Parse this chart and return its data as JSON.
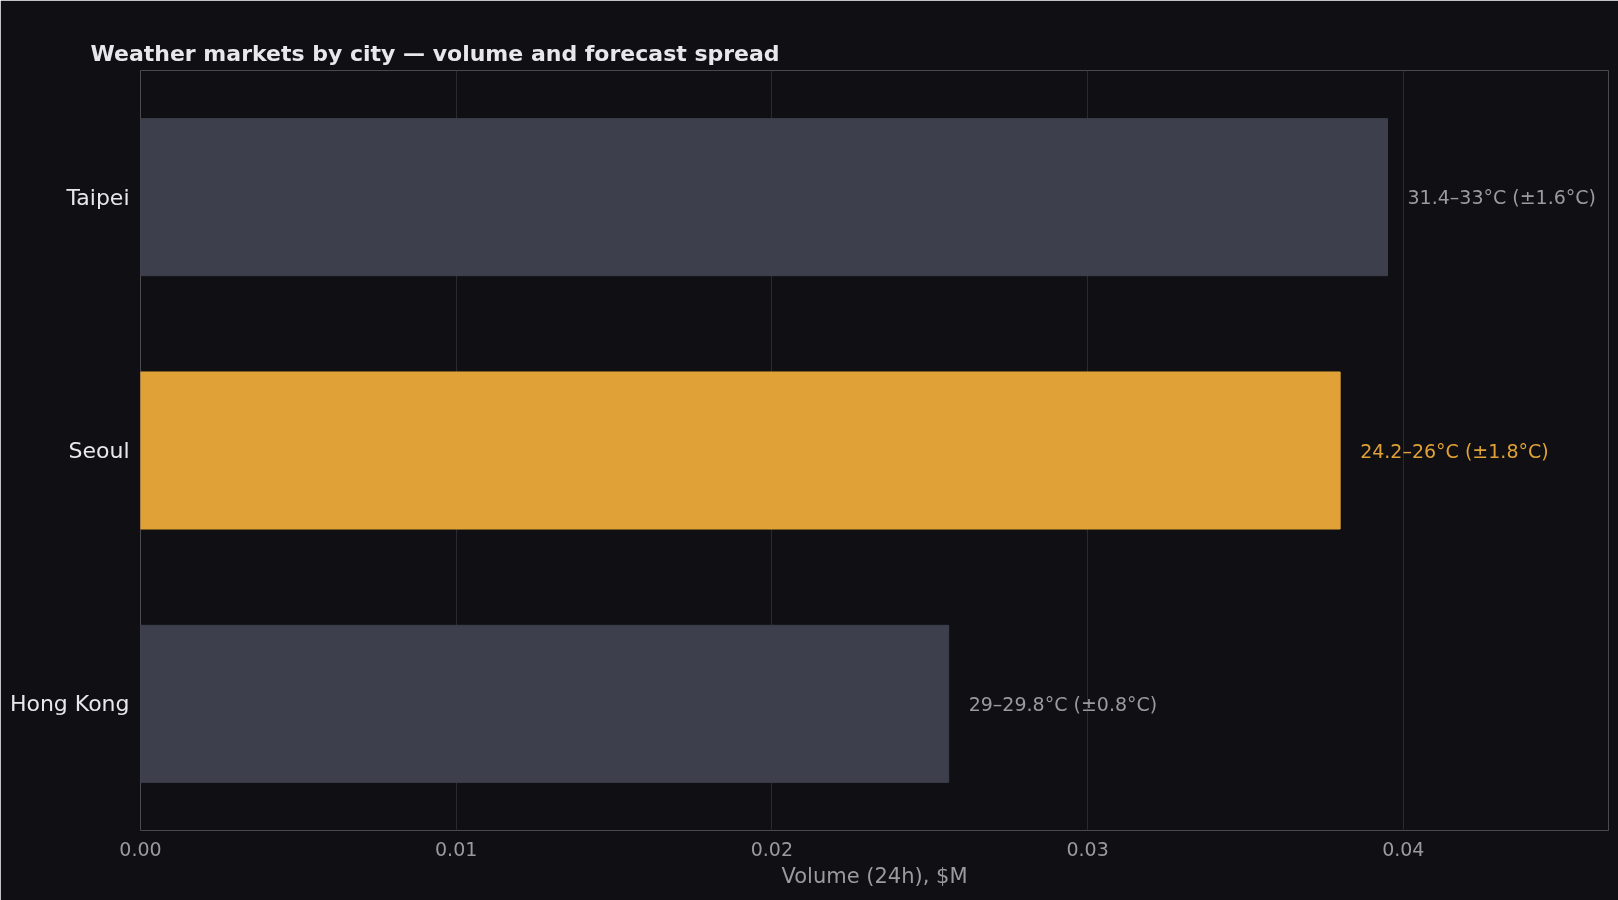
{
  "chart_data": {
    "type": "bar",
    "orientation": "horizontal",
    "title": "Weather markets by city — volume and forecast spread",
    "xlabel": "Volume (24h), $M",
    "categories": [
      "Taipei",
      "Seoul",
      "Hong Kong"
    ],
    "values": [
      0.0395,
      0.038,
      0.0256
    ],
    "colors": [
      "#3d3f4c",
      "#e0a236",
      "#3d3f4c"
    ],
    "value_labels": [
      "31.4–33°C (±1.6°C)",
      "24.2–26°C (±1.8°C)",
      "29–29.8°C (±0.8°C)"
    ],
    "xlim": [
      0,
      0.0465
    ],
    "xticks": [
      {
        "value": 0,
        "label": "0.00"
      },
      {
        "value": 0.01,
        "label": "0.01"
      },
      {
        "value": 0.02,
        "label": "0.02"
      },
      {
        "value": 0.03,
        "label": "0.03"
      },
      {
        "value": 0.04,
        "label": "0.04"
      }
    ],
    "grid": "x"
  }
}
